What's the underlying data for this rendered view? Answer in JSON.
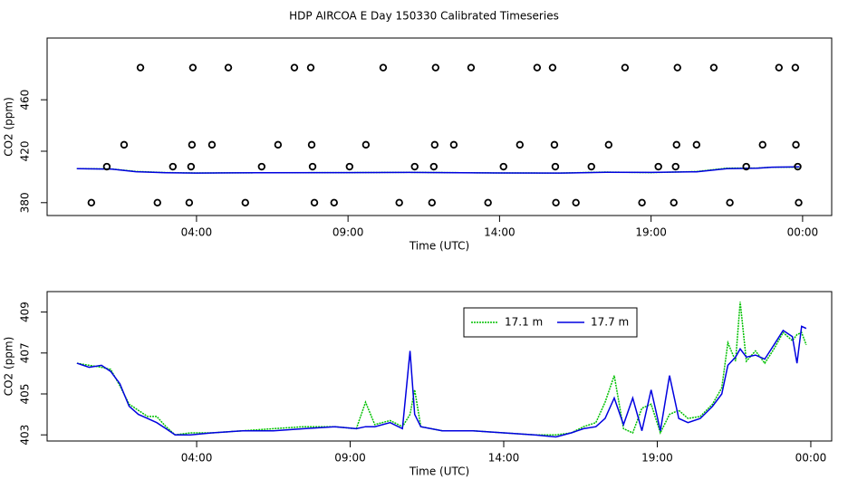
{
  "title": "HDP AIRCOA E  Day 150330  Calibrated Timeseries",
  "chart_data": [
    {
      "type": "line",
      "xlabel": "Time (UTC)",
      "ylabel": "CO2 (ppm)",
      "xlim": [
        -0.93,
        24.96
      ],
      "ylim": [
        370,
        508
      ],
      "xticks": [
        {
          "value": 4,
          "label": "04:00"
        },
        {
          "value": 9,
          "label": "09:00"
        },
        {
          "value": 14,
          "label": "14:00"
        },
        {
          "value": 19,
          "label": "19:00"
        },
        {
          "value": 24,
          "label": "00:00"
        }
      ],
      "yticks": [
        380,
        420,
        460
      ],
      "x": [
        0.05,
        1.2,
        2.0,
        3.0,
        4.0,
        6.0,
        9.0,
        11.0,
        14.0,
        16.0,
        17.5,
        19.0,
        20.5,
        21.5,
        22.5,
        23.0,
        23.9
      ],
      "series": [
        {
          "color": "#00c000",
          "style": "dotted",
          "values": [
            406.5,
            406.2,
            404.3,
            403.4,
            403.1,
            403.2,
            403.4,
            403.6,
            403.1,
            403.0,
            403.8,
            403.4,
            404.2,
            406.8,
            406.9,
            407.5,
            407.6
          ]
        },
        {
          "color": "#0000e0",
          "style": "solid",
          "values": [
            406.5,
            406.1,
            404.1,
            403.3,
            403.0,
            403.2,
            403.4,
            403.5,
            403.1,
            403.0,
            403.6,
            403.5,
            404.0,
            406.5,
            406.8,
            407.6,
            407.9
          ]
        }
      ],
      "points": {
        "color": "#000000",
        "x": [
          2.15,
          3.88,
          5.05,
          7.23,
          7.77,
          10.16,
          11.89,
          13.06,
          15.24,
          15.75,
          18.14,
          19.87,
          21.07,
          23.22,
          23.76,
          1.61,
          3.85,
          4.51,
          6.69,
          7.8,
          9.59,
          11.86,
          12.49,
          14.67,
          15.81,
          17.6,
          19.84,
          20.5,
          22.68,
          23.78,
          1.04,
          3.22,
          3.82,
          6.15,
          7.83,
          9.05,
          11.2,
          11.83,
          14.13,
          15.84,
          17.03,
          19.24,
          19.81,
          22.14,
          23.84,
          0.53,
          2.71,
          3.76,
          5.61,
          7.89,
          8.54,
          10.69,
          11.77,
          13.62,
          15.86,
          16.52,
          18.7,
          19.75,
          21.6,
          23.87
        ],
        "values": [
          485,
          485,
          485,
          485,
          485,
          485,
          485,
          485,
          485,
          485,
          485,
          485,
          485,
          485,
          485,
          425,
          425,
          425,
          425,
          425,
          425,
          425,
          425,
          425,
          425,
          425,
          425,
          425,
          425,
          425,
          408,
          408,
          408,
          408,
          408,
          408,
          408,
          408,
          408,
          408,
          408,
          408,
          408,
          408,
          408,
          380,
          380,
          380,
          380,
          380,
          380,
          380,
          380,
          380,
          380,
          380,
          380,
          380,
          380,
          380
        ]
      }
    },
    {
      "type": "line",
      "xlabel": "Time (UTC)",
      "ylabel": "CO2 (ppm)",
      "xlim": [
        -0.87,
        24.68
      ],
      "ylim": [
        402.7,
        410.0
      ],
      "xticks": [
        {
          "value": 4,
          "label": "04:00"
        },
        {
          "value": 9,
          "label": "09:00"
        },
        {
          "value": 14,
          "label": "14:00"
        },
        {
          "value": 19,
          "label": "19:00"
        },
        {
          "value": 24,
          "label": "00:00"
        }
      ],
      "yticks": [
        403,
        405,
        407,
        409
      ],
      "legend": "top",
      "x": [
        0.1,
        0.5,
        0.9,
        1.2,
        1.5,
        1.8,
        2.1,
        2.4,
        2.7,
        3.0,
        3.3,
        3.8,
        4.5,
        5.5,
        6.5,
        7.5,
        8.5,
        9.2,
        9.5,
        9.8,
        10.3,
        10.7,
        10.95,
        11.1,
        11.3,
        12.0,
        13.0,
        14.0,
        15.0,
        15.7,
        16.2,
        16.6,
        17.0,
        17.3,
        17.6,
        17.9,
        18.2,
        18.5,
        18.8,
        19.1,
        19.4,
        19.7,
        20.0,
        20.4,
        20.8,
        21.1,
        21.3,
        21.55,
        21.7,
        21.9,
        22.2,
        22.5,
        22.8,
        23.1,
        23.4,
        23.55,
        23.7,
        23.85
      ],
      "series": [
        {
          "name": "17.1 m",
          "color": "#00c000",
          "style": "dotted",
          "values": [
            406.5,
            406.4,
            406.3,
            406.2,
            405.4,
            404.5,
            404.2,
            403.9,
            403.9,
            403.4,
            403.0,
            403.1,
            403.1,
            403.2,
            403.3,
            403.4,
            403.4,
            403.3,
            404.6,
            403.5,
            403.7,
            403.4,
            404.0,
            405.2,
            403.4,
            403.2,
            403.2,
            403.1,
            403.0,
            403.0,
            403.1,
            403.4,
            403.6,
            404.6,
            405.9,
            403.3,
            403.1,
            404.3,
            404.5,
            403.1,
            404.0,
            404.2,
            403.8,
            403.9,
            404.5,
            405.3,
            407.5,
            406.6,
            409.5,
            406.6,
            407.1,
            406.5,
            407.2,
            408.0,
            407.6,
            407.9,
            408.0,
            407.4
          ]
        },
        {
          "name": "17.7 m",
          "color": "#0000e0",
          "style": "solid",
          "values": [
            406.5,
            406.3,
            406.4,
            406.1,
            405.5,
            404.4,
            404.0,
            403.8,
            403.6,
            403.3,
            403.0,
            403.0,
            403.1,
            403.2,
            403.2,
            403.3,
            403.4,
            403.3,
            403.4,
            403.4,
            403.6,
            403.3,
            407.1,
            404.0,
            403.4,
            403.2,
            403.2,
            403.1,
            403.0,
            402.9,
            403.1,
            403.3,
            403.4,
            403.8,
            404.8,
            403.5,
            404.8,
            403.2,
            405.2,
            403.2,
            405.9,
            403.8,
            403.6,
            403.8,
            404.4,
            405.0,
            406.4,
            406.8,
            407.2,
            406.8,
            406.9,
            406.7,
            407.4,
            408.1,
            407.8,
            406.5,
            408.3,
            408.2
          ]
        }
      ]
    }
  ]
}
